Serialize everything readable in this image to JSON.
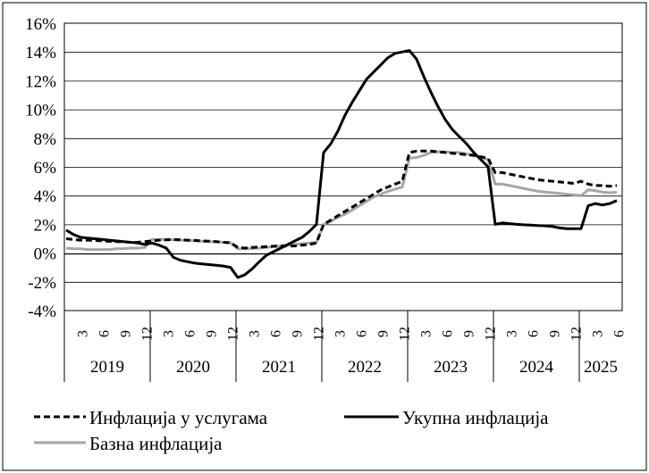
{
  "chart_data": {
    "type": "line",
    "title": "",
    "xlabel": "",
    "ylabel": "",
    "ylim": [
      -4,
      16
    ],
    "yticks": [
      "-4%",
      "-2%",
      "0%",
      "2%",
      "4%",
      "6%",
      "8%",
      "10%",
      "12%",
      "14%",
      "16%"
    ],
    "yticks_values": [
      -4,
      -2,
      0,
      2,
      4,
      6,
      8,
      10,
      12,
      14,
      16
    ],
    "month_ticks": [
      "3",
      "6",
      "9",
      "12"
    ],
    "last_year_month_ticks": [
      "3",
      "6"
    ],
    "years": [
      "2019",
      "2020",
      "2021",
      "2022",
      "2023",
      "2024",
      "2025"
    ],
    "x_start": "2019-01",
    "x_end": "2025-06",
    "grid": "horizontal",
    "legend_position": "bottom",
    "series": [
      {
        "name": "Инфлација у услугама",
        "color": "#000000",
        "style": "dashed",
        "values": [
          1.0,
          0.95,
          0.9,
          0.9,
          0.88,
          0.85,
          0.82,
          0.8,
          0.78,
          0.75,
          0.75,
          0.8,
          0.85,
          0.9,
          0.92,
          0.95,
          0.93,
          0.9,
          0.88,
          0.85,
          0.83,
          0.8,
          0.75,
          0.72,
          0.4,
          0.35,
          0.4,
          0.42,
          0.45,
          0.48,
          0.5,
          0.5,
          0.5,
          0.55,
          0.6,
          0.7,
          2.0,
          2.3,
          2.6,
          2.9,
          3.2,
          3.5,
          3.8,
          4.1,
          4.4,
          4.6,
          4.8,
          5.0,
          7.0,
          7.1,
          7.1,
          7.1,
          7.05,
          7.0,
          6.95,
          6.9,
          6.85,
          6.8,
          6.7,
          6.6,
          5.6,
          5.6,
          5.5,
          5.4,
          5.3,
          5.2,
          5.1,
          5.05,
          5.0,
          4.95,
          4.9,
          4.85,
          5.0,
          4.8,
          4.7,
          4.7,
          4.65,
          4.7
        ]
      },
      {
        "name": "Укупна инфлација",
        "color": "#000000",
        "style": "solid",
        "values": [
          1.6,
          1.3,
          1.1,
          1.05,
          1.0,
          0.95,
          0.9,
          0.85,
          0.8,
          0.75,
          0.7,
          0.6,
          0.7,
          0.55,
          0.35,
          -0.3,
          -0.5,
          -0.6,
          -0.7,
          -0.75,
          -0.8,
          -0.85,
          -0.9,
          -1.0,
          -1.7,
          -1.5,
          -1.1,
          -0.6,
          -0.15,
          0.1,
          0.35,
          0.6,
          0.85,
          1.1,
          1.5,
          2.0,
          7.0,
          7.6,
          8.5,
          9.6,
          10.5,
          11.3,
          12.1,
          12.6,
          13.1,
          13.6,
          13.9,
          14.0,
          14.1,
          13.5,
          12.3,
          11.2,
          10.2,
          9.3,
          8.6,
          8.1,
          7.6,
          7.0,
          6.5,
          6.0,
          2.0,
          2.1,
          2.05,
          2.0,
          1.97,
          1.95,
          1.92,
          1.9,
          1.85,
          1.75,
          1.7,
          1.7,
          1.7,
          3.3,
          3.45,
          3.35,
          3.45,
          3.65
        ]
      },
      {
        "name": "Базна инфлација",
        "color": "#a6a6a6",
        "style": "solid",
        "values": [
          0.35,
          0.3,
          0.3,
          0.25,
          0.25,
          0.25,
          0.25,
          0.3,
          0.3,
          0.35,
          0.35,
          0.4,
          0.95,
          0.95,
          0.95,
          0.92,
          0.9,
          0.88,
          0.85,
          0.82,
          0.8,
          0.78,
          0.75,
          0.72,
          0.3,
          0.3,
          0.32,
          0.35,
          0.4,
          0.45,
          0.5,
          0.55,
          0.6,
          0.65,
          0.7,
          0.75,
          2.0,
          2.2,
          2.5,
          2.7,
          3.0,
          3.3,
          3.6,
          3.9,
          4.1,
          4.3,
          4.45,
          4.6,
          6.6,
          6.65,
          6.8,
          7.0,
          7.05,
          7.05,
          7.0,
          7.0,
          6.9,
          6.8,
          6.65,
          6.5,
          4.8,
          4.8,
          4.7,
          4.6,
          4.5,
          4.4,
          4.3,
          4.25,
          4.2,
          4.15,
          4.1,
          4.05,
          4.0,
          4.4,
          4.35,
          4.25,
          4.2,
          4.25
        ]
      }
    ]
  }
}
